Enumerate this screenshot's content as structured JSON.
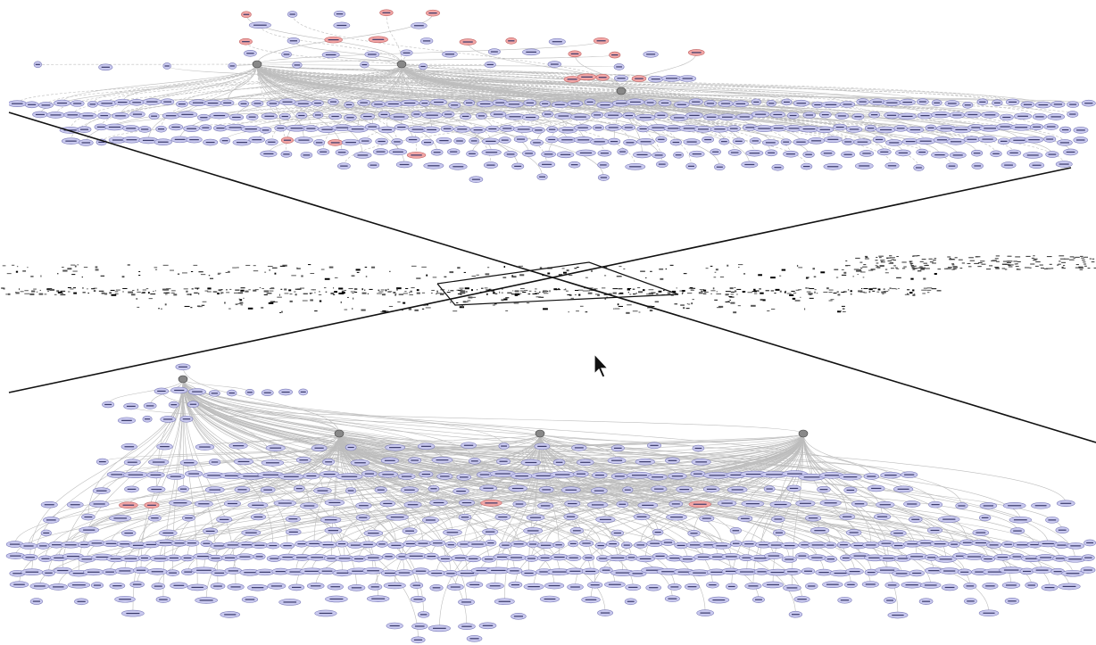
{
  "window": {
    "kind": "graph-visualization",
    "background": "#ffffff"
  },
  "colors": {
    "node_fill": "#c9c9ef",
    "node_stroke": "#7a7ab8",
    "highlight_fill": "#f2a6a6",
    "highlight_stroke": "#c06060",
    "root_fill": "#888888",
    "edge": "#bdbdbd",
    "transform_line": "#111111"
  },
  "graph_views": {
    "top": {
      "label_style": "small",
      "nodes_visible": "many",
      "highlighted_groups": [
        "top-row",
        "middle-right",
        "right-cluster"
      ]
    },
    "middle": {
      "label_style": "compressed"
    },
    "bottom": {
      "label_style": "small",
      "nodes_visible": "many"
    }
  },
  "cursor": {
    "icon": "arrow-pointer-icon"
  }
}
